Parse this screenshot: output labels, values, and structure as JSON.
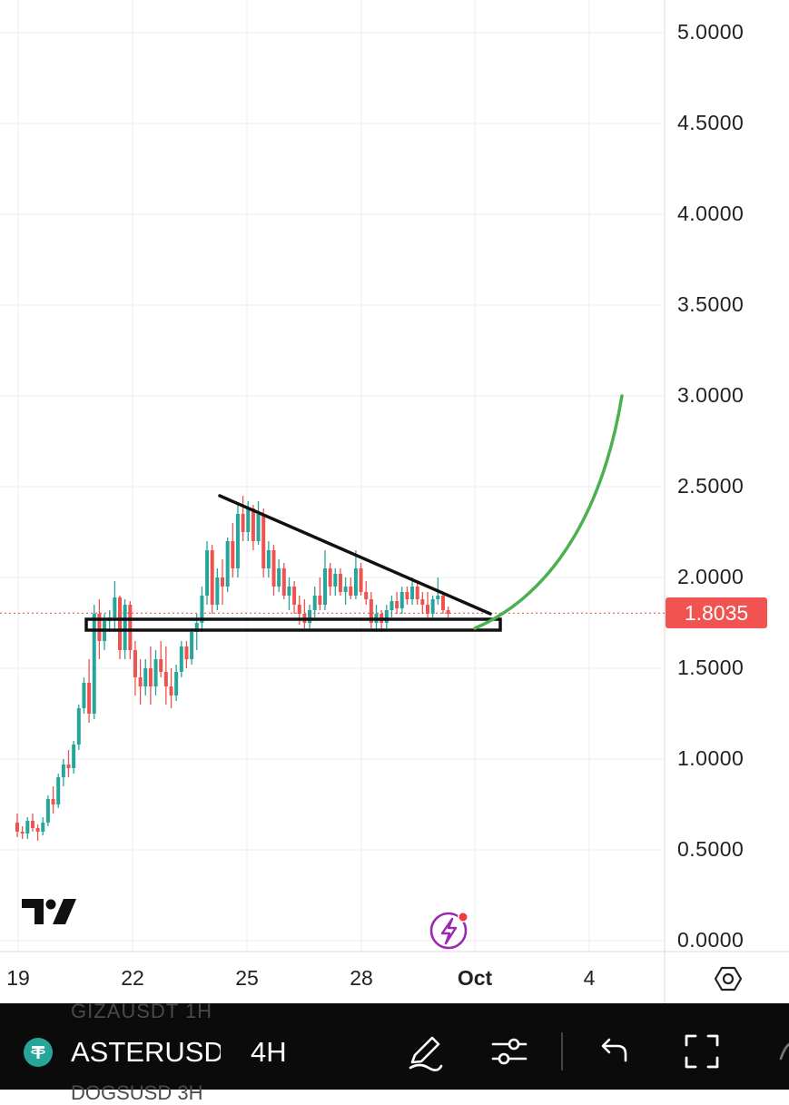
{
  "price_axis": {
    "labels": [
      "5.0000",
      "4.5000",
      "4.0000",
      "3.5000",
      "3.0000",
      "2.5000",
      "2.0000",
      "1.5000",
      "1.0000",
      "0.5000",
      "0.0000"
    ],
    "current_price": "1.8035"
  },
  "time_axis": {
    "labels": [
      "19",
      "22",
      "25",
      "28",
      "Oct",
      "4"
    ]
  },
  "colors": {
    "up": "#26a69a",
    "down": "#ef5350",
    "projection": "#4caf50",
    "price_line": "#f05350"
  },
  "toolbar": {
    "symbol": "ASTERUSDT",
    "interval": "4H",
    "ghost_top": "GIZAUSDT  1H",
    "ghost_bottom": "DOGSUSD   3H",
    "icons": [
      "draw-icon",
      "indicators-icon",
      "undo-icon",
      "fullscreen-icon"
    ]
  },
  "chart_data": {
    "type": "candlestick",
    "title": "",
    "xlabel": "",
    "ylabel": "",
    "ylim": [
      0,
      5
    ],
    "x_ticks": [
      "19",
      "22",
      "25",
      "28",
      "Oct",
      "4"
    ],
    "current_price": 1.8035,
    "candles": [
      [
        0.65,
        0.7,
        0.57,
        0.6
      ],
      [
        0.6,
        0.63,
        0.56,
        0.59
      ],
      [
        0.59,
        0.68,
        0.56,
        0.66
      ],
      [
        0.66,
        0.7,
        0.6,
        0.62
      ],
      [
        0.62,
        0.64,
        0.55,
        0.6
      ],
      [
        0.6,
        0.68,
        0.58,
        0.65
      ],
      [
        0.65,
        0.8,
        0.63,
        0.78
      ],
      [
        0.78,
        0.85,
        0.7,
        0.75
      ],
      [
        0.75,
        0.92,
        0.73,
        0.9
      ],
      [
        0.9,
        1.0,
        0.85,
        0.97
      ],
      [
        0.97,
        1.05,
        0.9,
        0.95
      ],
      [
        0.95,
        1.1,
        0.92,
        1.08
      ],
      [
        1.08,
        1.3,
        1.05,
        1.28
      ],
      [
        1.28,
        1.45,
        1.25,
        1.42
      ],
      [
        1.42,
        1.55,
        1.2,
        1.25
      ],
      [
        1.25,
        1.85,
        1.22,
        1.8
      ],
      [
        1.8,
        1.88,
        1.55,
        1.65
      ],
      [
        1.65,
        1.8,
        1.6,
        1.76
      ],
      [
        1.76,
        1.82,
        1.7,
        1.78
      ],
      [
        1.78,
        1.98,
        1.7,
        1.89
      ],
      [
        1.89,
        1.9,
        1.55,
        1.6
      ],
      [
        1.6,
        1.88,
        1.55,
        1.85
      ],
      [
        1.85,
        1.87,
        1.55,
        1.6
      ],
      [
        1.6,
        1.65,
        1.35,
        1.45
      ],
      [
        1.45,
        1.55,
        1.3,
        1.4
      ],
      [
        1.4,
        1.55,
        1.35,
        1.5
      ],
      [
        1.5,
        1.62,
        1.3,
        1.4
      ],
      [
        1.4,
        1.6,
        1.35,
        1.55
      ],
      [
        1.55,
        1.65,
        1.45,
        1.48
      ],
      [
        1.48,
        1.62,
        1.3,
        1.4
      ],
      [
        1.4,
        1.5,
        1.28,
        1.35
      ],
      [
        1.35,
        1.52,
        1.32,
        1.48
      ],
      [
        1.48,
        1.65,
        1.45,
        1.62
      ],
      [
        1.62,
        1.65,
        1.5,
        1.55
      ],
      [
        1.55,
        1.72,
        1.52,
        1.7
      ],
      [
        1.7,
        1.8,
        1.6,
        1.75
      ],
      [
        1.75,
        1.95,
        1.7,
        1.9
      ],
      [
        1.9,
        2.2,
        1.85,
        2.15
      ],
      [
        2.15,
        2.18,
        1.8,
        1.85
      ],
      [
        1.85,
        2.05,
        1.82,
        2.0
      ],
      [
        2.0,
        2.1,
        1.85,
        1.95
      ],
      [
        1.95,
        2.22,
        1.92,
        2.2
      ],
      [
        2.2,
        2.3,
        2.0,
        2.05
      ],
      [
        2.05,
        2.4,
        2.0,
        2.35
      ],
      [
        2.35,
        2.45,
        2.2,
        2.25
      ],
      [
        2.25,
        2.42,
        2.2,
        2.38
      ],
      [
        2.38,
        2.4,
        2.15,
        2.2
      ],
      [
        2.2,
        2.42,
        2.18,
        2.35
      ],
      [
        2.35,
        2.38,
        2.0,
        2.05
      ],
      [
        2.05,
        2.2,
        2.0,
        2.15
      ],
      [
        2.15,
        2.18,
        1.9,
        1.95
      ],
      [
        1.95,
        2.1,
        1.92,
        2.05
      ],
      [
        2.05,
        2.08,
        1.88,
        1.9
      ],
      [
        1.9,
        2.0,
        1.82,
        1.95
      ],
      [
        1.95,
        1.98,
        1.8,
        1.85
      ],
      [
        1.85,
        1.9,
        1.74,
        1.8
      ],
      [
        1.8,
        1.88,
        1.72,
        1.75
      ],
      [
        1.75,
        1.85,
        1.72,
        1.82
      ],
      [
        1.82,
        1.95,
        1.78,
        1.9
      ],
      [
        1.9,
        2.0,
        1.82,
        1.85
      ],
      [
        1.85,
        2.15,
        1.82,
        2.05
      ],
      [
        2.05,
        2.08,
        1.9,
        1.95
      ],
      [
        1.95,
        2.05,
        1.9,
        2.02
      ],
      [
        2.02,
        2.05,
        1.9,
        1.92
      ],
      [
        1.92,
        2.0,
        1.85,
        1.95
      ],
      [
        1.95,
        2.0,
        1.88,
        1.9
      ],
      [
        1.9,
        2.15,
        1.88,
        2.05
      ],
      [
        2.05,
        2.08,
        1.9,
        1.92
      ],
      [
        1.92,
        1.98,
        1.85,
        1.88
      ],
      [
        1.88,
        1.92,
        1.72,
        1.75
      ],
      [
        1.75,
        1.85,
        1.7,
        1.8
      ],
      [
        1.8,
        1.82,
        1.7,
        1.75
      ],
      [
        1.75,
        1.85,
        1.72,
        1.82
      ],
      [
        1.82,
        1.9,
        1.78,
        1.87
      ],
      [
        1.87,
        1.92,
        1.8,
        1.83
      ],
      [
        1.83,
        1.95,
        1.8,
        1.92
      ],
      [
        1.92,
        1.95,
        1.85,
        1.88
      ],
      [
        1.88,
        2.0,
        1.85,
        1.95
      ],
      [
        1.95,
        1.98,
        1.85,
        1.88
      ],
      [
        1.88,
        1.92,
        1.8,
        1.85
      ],
      [
        1.85,
        1.92,
        1.78,
        1.8
      ],
      [
        1.8,
        1.9,
        1.78,
        1.88
      ],
      [
        1.88,
        2.0,
        1.85,
        1.9
      ],
      [
        1.9,
        1.92,
        1.8,
        1.82
      ],
      [
        1.82,
        1.84,
        1.78,
        1.8
      ]
    ],
    "annotations": [
      {
        "type": "descending-trendline",
        "from": {
          "x": "24 Sep",
          "y": 2.45
        },
        "to": {
          "x": "30 Sep",
          "y": 1.8
        }
      },
      {
        "type": "support-box",
        "y_range": [
          1.71,
          1.77
        ]
      },
      {
        "type": "projection-curve",
        "from": {
          "x": "30 Sep",
          "y": 1.72
        },
        "to": {
          "x": "4 Oct",
          "y": 3.0
        }
      }
    ]
  }
}
